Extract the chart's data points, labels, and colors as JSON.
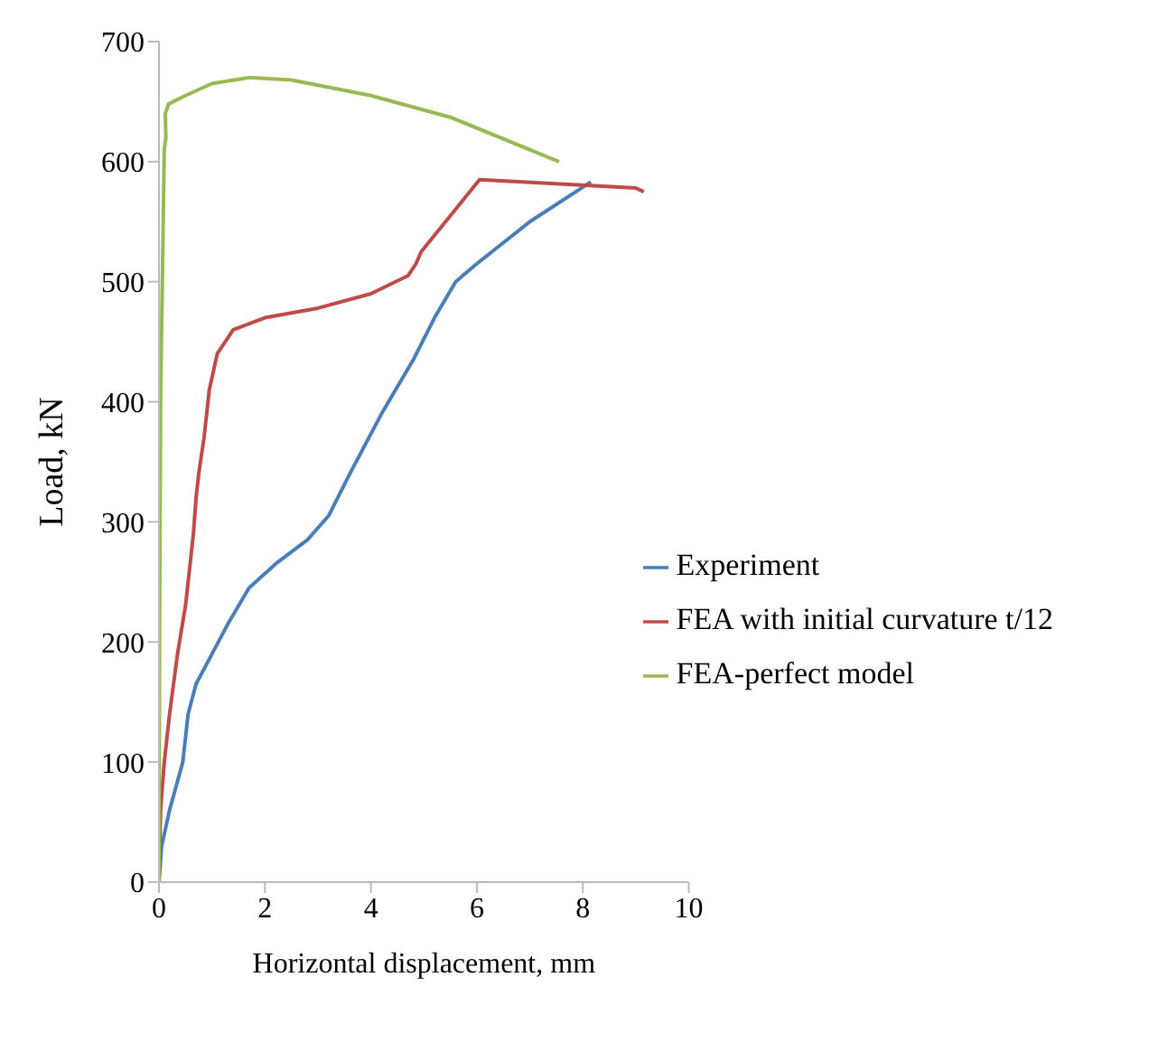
{
  "chart_data": {
    "type": "line",
    "xlabel": "Horizontal displacement, mm",
    "ylabel": "Load, kN",
    "xlim": [
      0,
      10
    ],
    "xticks": [
      0,
      2,
      4,
      6,
      8,
      10
    ],
    "ylim": [
      0,
      700
    ],
    "yticks": [
      0,
      100,
      200,
      300,
      400,
      500,
      600,
      700
    ],
    "grid": false,
    "legend": "right",
    "marker": "none",
    "line_style": "solid",
    "series": [
      {
        "name": "Experiment",
        "color": "#4a7ebb",
        "x": [
          0,
          0.05,
          0.2,
          0.45,
          0.55,
          0.7,
          1.0,
          1.3,
          1.7,
          2.2,
          2.8,
          3.2,
          3.6,
          4.2,
          4.8,
          5.2,
          5.6,
          6.0,
          7.0,
          8.15
        ],
        "values": [
          0,
          30,
          60,
          100,
          140,
          165,
          190,
          215,
          245,
          265,
          285,
          305,
          340,
          390,
          435,
          470,
          500,
          515,
          550,
          583
        ]
      },
      {
        "name": "FEA with initial curvature t/12",
        "color": "#be4b48",
        "x": [
          0,
          0.03,
          0.1,
          0.2,
          0.35,
          0.5,
          0.65,
          0.7,
          0.75,
          0.85,
          0.95,
          1.1,
          1.4,
          2,
          3,
          4,
          4.7,
          4.85,
          4.95,
          6.05,
          9,
          9.15
        ],
        "values": [
          0,
          60,
          100,
          140,
          190,
          230,
          290,
          320,
          340,
          370,
          410,
          440,
          460,
          470,
          478,
          490,
          505,
          515,
          525,
          585,
          578,
          575
        ]
      },
      {
        "name": "FEA-perfect model",
        "color": "#98b954",
        "x": [
          0,
          0.01,
          0.03,
          0.08,
          0.1,
          0.13,
          0.12,
          0.18,
          0.5,
          1,
          1.7,
          2.5,
          4,
          5.5,
          7.55
        ],
        "values": [
          0,
          200,
          400,
          550,
          610,
          620,
          640,
          648,
          655,
          665,
          670,
          668,
          655,
          637,
          600
        ]
      }
    ]
  }
}
